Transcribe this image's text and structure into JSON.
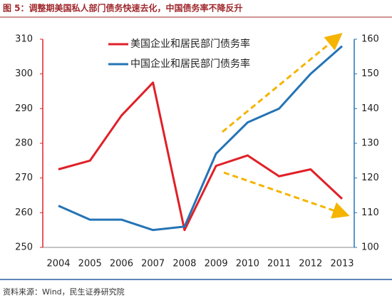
{
  "chart_data": {
    "type": "line",
    "title": "图 5：调整期美国私人部门债务快速去化，中国债务率不降反升",
    "source": "资料来源：Wind，民生证券研究院",
    "categories": [
      "2004",
      "2005",
      "2006",
      "2007",
      "2008",
      "2009",
      "2010",
      "2011",
      "2012",
      "2013"
    ],
    "series": [
      {
        "name": "美国企业和居民部门债务率",
        "color": "#e02028",
        "values": [
          272.5,
          275,
          288,
          297.5,
          255,
          273.5,
          276.5,
          270.5,
          272.5,
          264
        ]
      },
      {
        "name": "中国企业和居民部门债务率",
        "color": "#2474b5",
        "axis": "y2",
        "values": [
          112,
          108,
          108,
          105,
          106,
          127,
          136,
          140,
          150,
          158
        ]
      }
    ],
    "ylim": [
      250,
      310
    ],
    "yticks": [
      250,
      260,
      270,
      280,
      290,
      300,
      310
    ],
    "y2lim": [
      100,
      160
    ],
    "y2ticks": [
      100,
      110,
      120,
      130,
      140,
      150,
      160
    ]
  }
}
